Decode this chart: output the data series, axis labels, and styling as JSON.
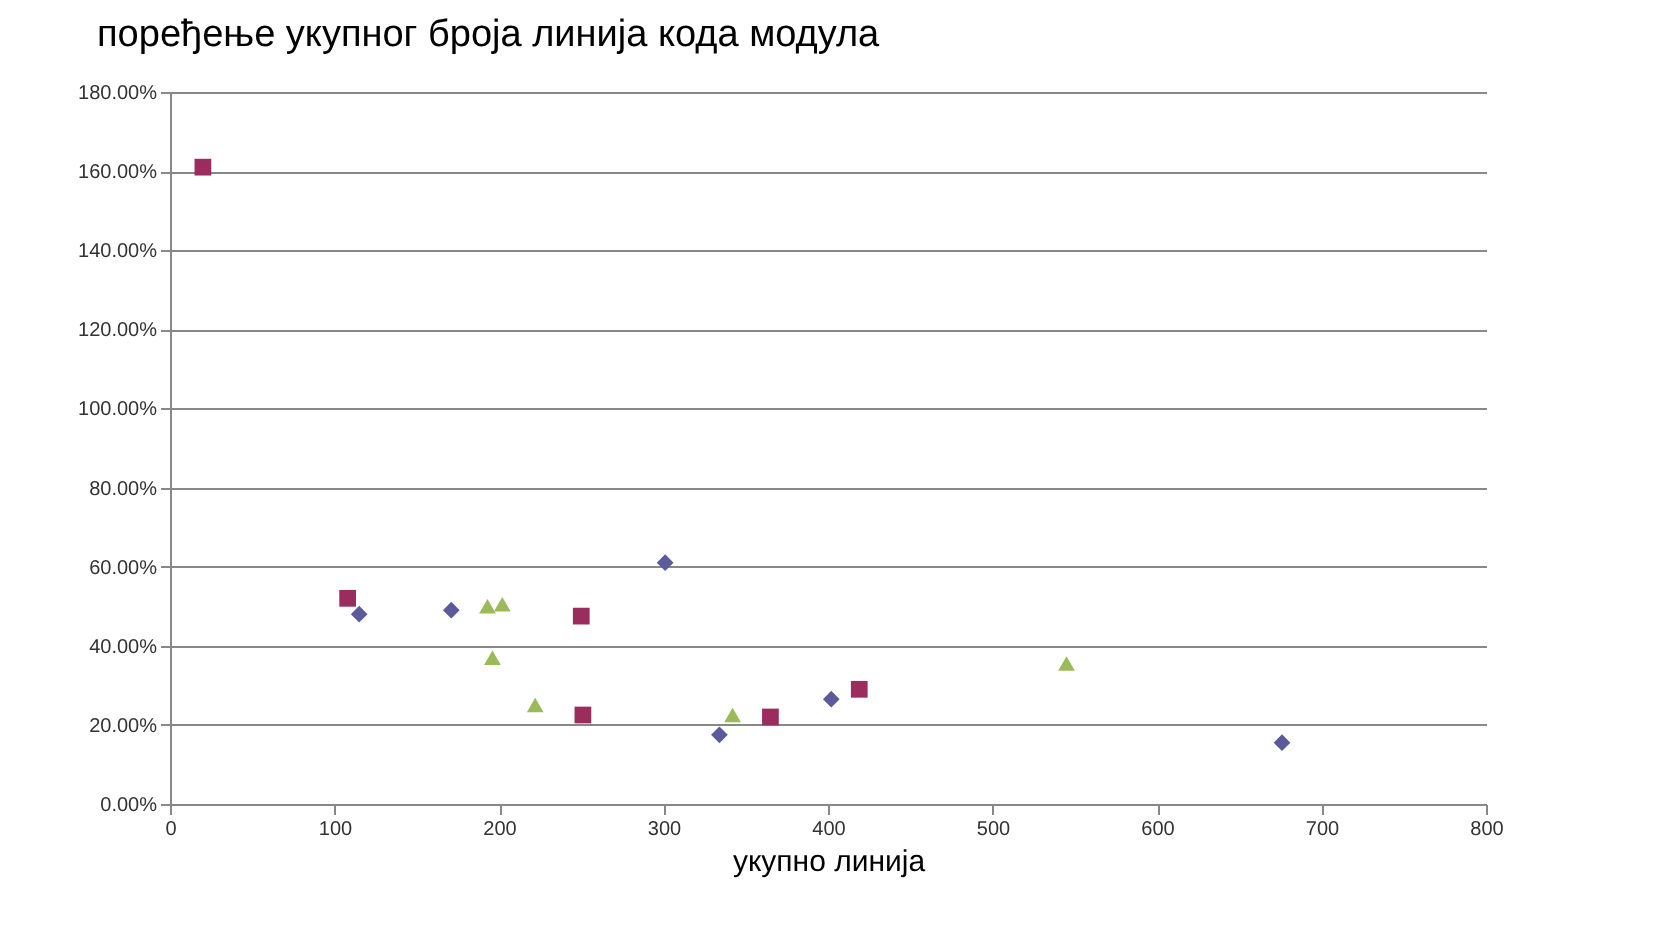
{
  "chart_data": {
    "type": "scatter",
    "title": "поређење укупног броја линија кода модула",
    "xlabel": "укупно линија",
    "xlim": [
      0,
      800
    ],
    "xticks": [
      0,
      100,
      200,
      300,
      400,
      500,
      600,
      700,
      800
    ],
    "ylim": [
      0,
      180
    ],
    "yticks": [
      {
        "value": 0,
        "label": "0.00%"
      },
      {
        "value": 20,
        "label": "20.00%"
      },
      {
        "value": 40,
        "label": "40.00%"
      },
      {
        "value": 60,
        "label": "60.00%"
      },
      {
        "value": 80,
        "label": "80.00%"
      },
      {
        "value": 100,
        "label": "100.00%"
      },
      {
        "value": 120,
        "label": "120.00%"
      },
      {
        "value": 140,
        "label": "140.00%"
      },
      {
        "value": 160,
        "label": "160.00%"
      },
      {
        "value": 180,
        "label": "180.00%"
      }
    ],
    "grid": "y",
    "series": [
      {
        "color": "#5b5b9b",
        "marker": "diamond",
        "x": [
          115,
          171,
          301,
          334,
          402,
          676
        ],
        "values": [
          48,
          49,
          61,
          17.5,
          26.5,
          15.5
        ]
      },
      {
        "color": "#9b2d5e",
        "marker": "square",
        "x": [
          20,
          108,
          250,
          251,
          365,
          419
        ],
        "values": [
          161,
          52,
          47.5,
          22.5,
          22,
          29
        ]
      },
      {
        "color": "#9bbb59",
        "marker": "triangle",
        "x": [
          193,
          202,
          196,
          222,
          342,
          545
        ],
        "values": [
          50,
          50.5,
          37,
          25,
          22.5,
          35.5
        ]
      }
    ]
  }
}
